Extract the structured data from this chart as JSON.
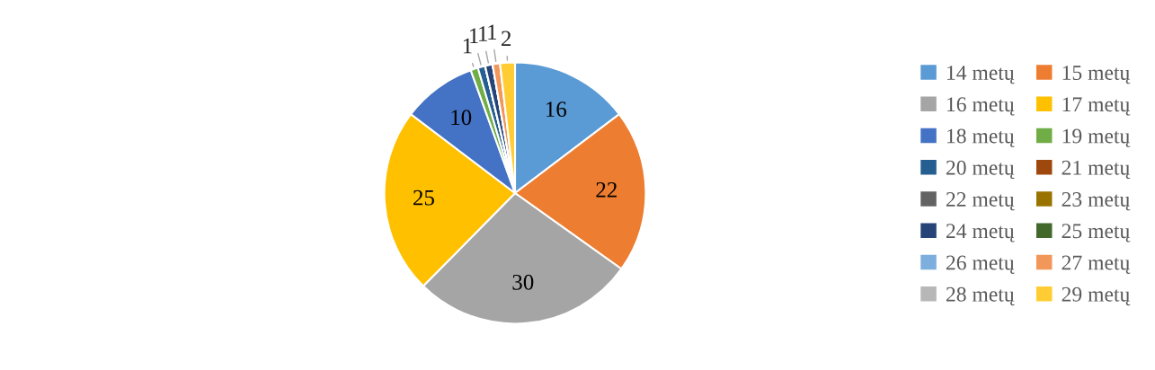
{
  "chart_data": {
    "type": "pie",
    "categories": [
      "14 metų",
      "15 metų",
      "16 metų",
      "17 metų",
      "18 metų",
      "19 metų",
      "20 metų",
      "21 metų",
      "22 metų",
      "23 metų",
      "24 metų",
      "25 metų",
      "26 metų",
      "27 metų",
      "28 metų",
      "29 metų"
    ],
    "values": [
      16,
      22,
      30,
      25,
      10,
      1,
      1,
      0,
      0,
      0,
      1,
      0,
      0,
      1,
      0,
      2
    ],
    "value_labels": [
      "16",
      "22",
      "30",
      "25",
      "10",
      "1",
      "1",
      null,
      null,
      null,
      "1",
      null,
      null,
      "1",
      null,
      "2"
    ],
    "colors": [
      "#5b9bd5",
      "#ed7d31",
      "#a5a5a5",
      "#ffc000",
      "#4472c4",
      "#70ad47",
      "#255e91",
      "#9e480e",
      "#636363",
      "#997300",
      "#264478",
      "#43682b",
      "#7cafdd",
      "#f1975a",
      "#b7b7b7",
      "#ffcd33"
    ],
    "legend": "right"
  }
}
